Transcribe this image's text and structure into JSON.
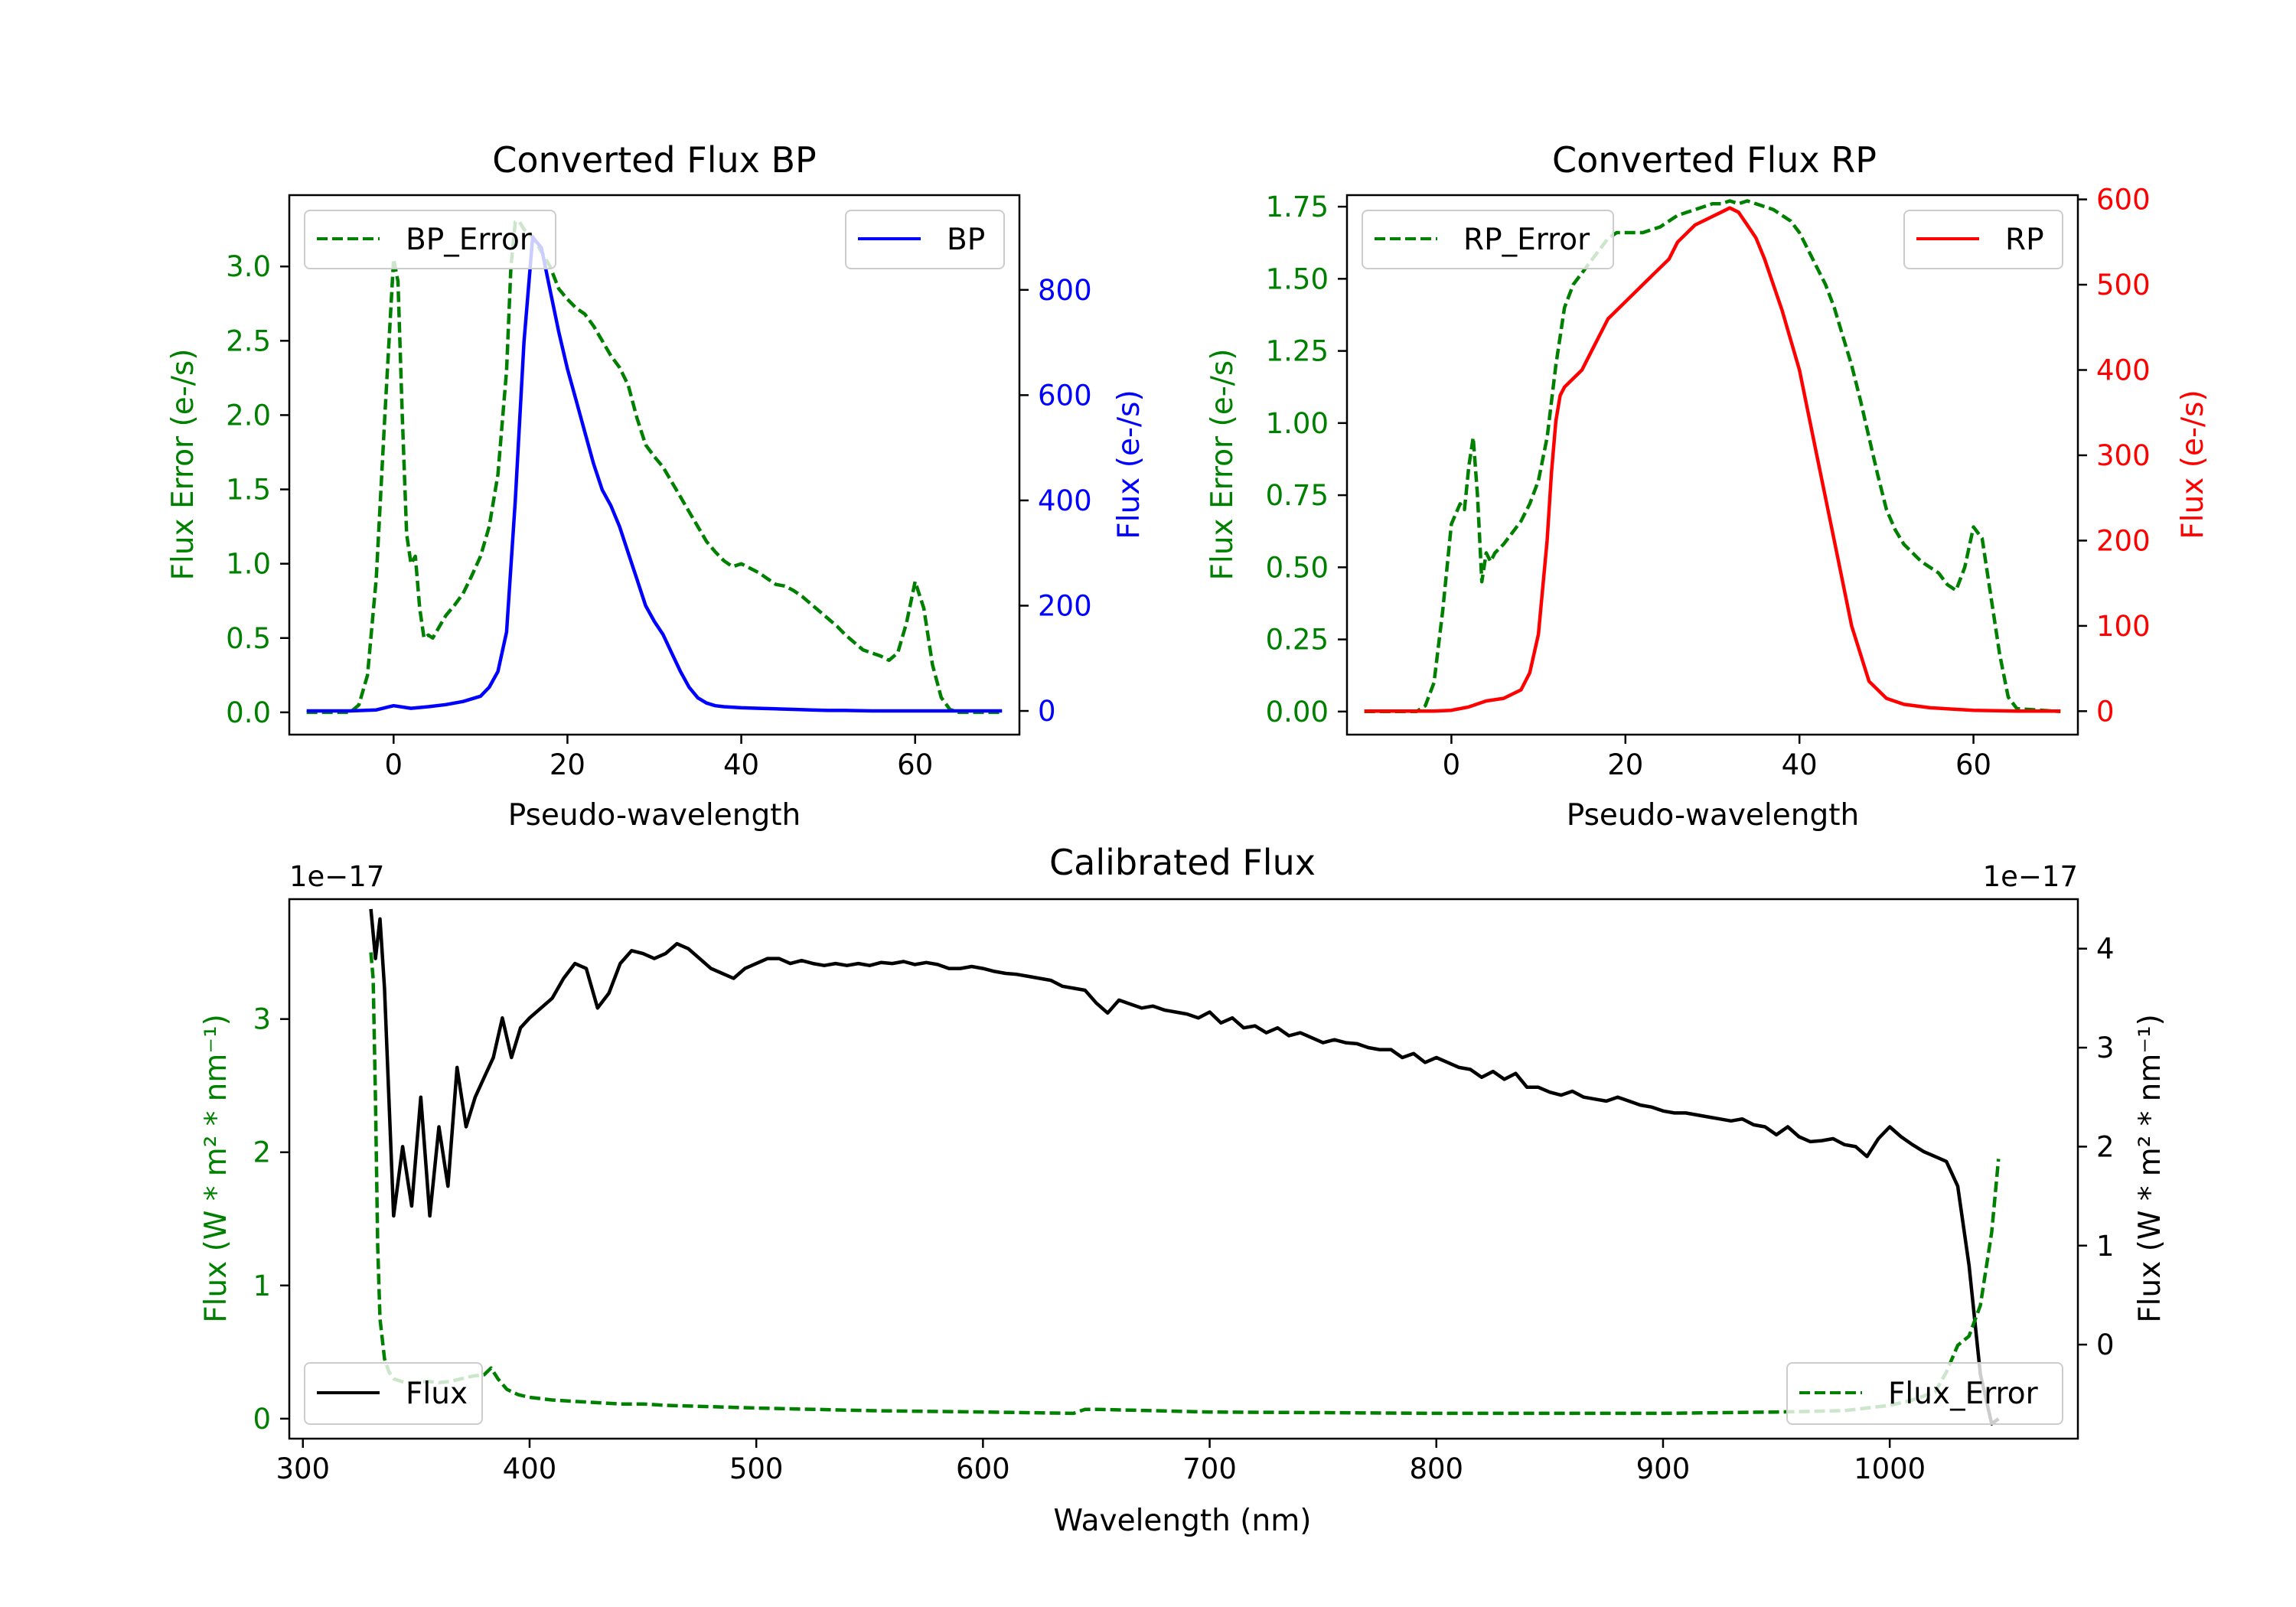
{
  "colors": {
    "bp": "#0000ff",
    "rp": "#ff0000",
    "error": "#008000",
    "flux": "#000000"
  },
  "chart_data": [
    {
      "type": "line",
      "title": "Converted Flux BP",
      "xlabel": "Pseudo-wavelength",
      "ylabel_left": "Flux Error (e-/s)",
      "ylabel_right": "Flux (e-/s)",
      "xlim": [
        -12,
        72
      ],
      "ylim_left": [
        -0.15,
        3.48
      ],
      "ylim_right": [
        -45,
        980
      ],
      "xticks": [
        "0",
        "20",
        "40",
        "60"
      ],
      "yticks_left": [
        "0.0",
        "0.5",
        "1.0",
        "1.5",
        "2.0",
        "2.5",
        "3.0"
      ],
      "yticks_right": [
        "0",
        "200",
        "400",
        "600",
        "800"
      ],
      "series": [
        {
          "name": "BP_Error",
          "axis": "left",
          "style": "dashed",
          "color": "#008000",
          "x": [
            -10,
            -5,
            -4,
            -3,
            -2,
            -1,
            0,
            0.5,
            1,
            1.5,
            2,
            2.5,
            3,
            3.5,
            4,
            4.5,
            5,
            6,
            7,
            8,
            9,
            10,
            11,
            12,
            13,
            13.5,
            14,
            14.5,
            15,
            16,
            17,
            18,
            19,
            20,
            21,
            22,
            23,
            24,
            25,
            26,
            27,
            28,
            29,
            30,
            31,
            32,
            33,
            34,
            35,
            36,
            37,
            38,
            39,
            40,
            41,
            42,
            43,
            44,
            45,
            46,
            47,
            48,
            49,
            50,
            51,
            52,
            53,
            54,
            55,
            56,
            57,
            58,
            59,
            60,
            61,
            62,
            63,
            64,
            65,
            70
          ],
          "y": [
            0,
            0,
            0.05,
            0.25,
            0.9,
            2.0,
            3.05,
            2.9,
            2.0,
            1.2,
            1.0,
            1.05,
            0.7,
            0.5,
            0.52,
            0.5,
            0.55,
            0.65,
            0.72,
            0.8,
            0.92,
            1.05,
            1.25,
            1.6,
            2.3,
            3.0,
            3.3,
            3.3,
            3.25,
            3.2,
            3.1,
            3.0,
            2.85,
            2.78,
            2.72,
            2.68,
            2.6,
            2.5,
            2.4,
            2.32,
            2.2,
            1.98,
            1.8,
            1.72,
            1.65,
            1.55,
            1.45,
            1.35,
            1.25,
            1.15,
            1.08,
            1.02,
            0.98,
            1.0,
            0.97,
            0.94,
            0.9,
            0.86,
            0.85,
            0.82,
            0.78,
            0.73,
            0.68,
            0.63,
            0.58,
            0.52,
            0.47,
            0.42,
            0.4,
            0.38,
            0.35,
            0.4,
            0.6,
            0.88,
            0.7,
            0.32,
            0.1,
            0.02,
            0,
            0
          ]
        },
        {
          "name": "BP",
          "axis": "right",
          "style": "solid",
          "color": "#0000ff",
          "x": [
            -10,
            -5,
            -2,
            0,
            2,
            4,
            6,
            8,
            10,
            11,
            12,
            13,
            14,
            15,
            16,
            17,
            18,
            19,
            20,
            21,
            22,
            23,
            24,
            25,
            26,
            27,
            28,
            29,
            30,
            31,
            32,
            33,
            34,
            35,
            36,
            37,
            38,
            40,
            42,
            44,
            46,
            48,
            50,
            52,
            55,
            60,
            65,
            70
          ],
          "y": [
            0,
            0,
            2,
            10,
            5,
            8,
            12,
            18,
            28,
            45,
            75,
            150,
            400,
            700,
            900,
            880,
            800,
            720,
            650,
            590,
            530,
            470,
            420,
            390,
            350,
            300,
            250,
            200,
            170,
            145,
            110,
            75,
            45,
            25,
            15,
            10,
            8,
            6,
            5,
            4,
            3,
            2,
            1,
            1,
            0,
            0,
            0,
            0
          ]
        }
      ],
      "legend": [
        "BP_Error",
        "BP"
      ]
    },
    {
      "type": "line",
      "title": "Converted Flux RP",
      "xlabel": "Pseudo-wavelength",
      "ylabel_left": "Flux Error (e-/s)",
      "ylabel_right": "Flux (e-/s)",
      "xlim": [
        -12,
        72
      ],
      "ylim_left": [
        -0.08,
        1.79
      ],
      "ylim_right": [
        -27.5,
        605
      ],
      "xticks": [
        "0",
        "20",
        "40",
        "60"
      ],
      "yticks_left": [
        "0.00",
        "0.25",
        "0.50",
        "0.75",
        "1.00",
        "1.25",
        "1.50",
        "1.75"
      ],
      "yticks_right": [
        "0",
        "100",
        "200",
        "300",
        "400",
        "500",
        "600"
      ],
      "series": [
        {
          "name": "RP_Error",
          "axis": "left",
          "style": "dashed",
          "color": "#008000",
          "x": [
            -10,
            -4,
            -3,
            -2,
            -1,
            0,
            1,
            1.5,
            2,
            2.5,
            3,
            3.5,
            4,
            4.5,
            5,
            6,
            7,
            8,
            9,
            10,
            11,
            12,
            13,
            14,
            15,
            16,
            17,
            18,
            19,
            20,
            21,
            22,
            23,
            24,
            25,
            26,
            27,
            28,
            29,
            30,
            31,
            32,
            33,
            34,
            35,
            36,
            37,
            38,
            39,
            40,
            41,
            42,
            43,
            44,
            45,
            46,
            47,
            48,
            49,
            50,
            51,
            52,
            53,
            54,
            55,
            56,
            57,
            58,
            59,
            60,
            61,
            62,
            63,
            64,
            65,
            70
          ],
          "y": [
            0,
            0,
            0.02,
            0.1,
            0.35,
            0.65,
            0.72,
            0.7,
            0.85,
            0.95,
            0.75,
            0.45,
            0.55,
            0.52,
            0.55,
            0.58,
            0.62,
            0.66,
            0.72,
            0.8,
            0.95,
            1.2,
            1.4,
            1.48,
            1.52,
            1.56,
            1.6,
            1.64,
            1.66,
            1.66,
            1.66,
            1.66,
            1.67,
            1.68,
            1.7,
            1.72,
            1.73,
            1.74,
            1.75,
            1.76,
            1.76,
            1.77,
            1.76,
            1.77,
            1.76,
            1.75,
            1.74,
            1.72,
            1.7,
            1.66,
            1.6,
            1.54,
            1.48,
            1.4,
            1.3,
            1.2,
            1.08,
            0.95,
            0.82,
            0.7,
            0.63,
            0.58,
            0.55,
            0.52,
            0.5,
            0.48,
            0.44,
            0.42,
            0.5,
            0.64,
            0.6,
            0.4,
            0.2,
            0.05,
            0.01,
            0
          ]
        },
        {
          "name": "RP",
          "axis": "right",
          "style": "solid",
          "color": "#ff0000",
          "x": [
            -10,
            -4,
            -2,
            0,
            2,
            4,
            6,
            8,
            9,
            10,
            11,
            11.5,
            12,
            12.5,
            13,
            14,
            15,
            16,
            17,
            18,
            20,
            22,
            24,
            25,
            26,
            28,
            30,
            31,
            32,
            33,
            34,
            35,
            36,
            38,
            40,
            42,
            44,
            46,
            48,
            50,
            52,
            55,
            60,
            65,
            70
          ],
          "y": [
            0,
            0,
            0,
            1,
            5,
            12,
            15,
            25,
            45,
            90,
            200,
            280,
            340,
            370,
            380,
            390,
            400,
            420,
            440,
            460,
            480,
            500,
            520,
            530,
            550,
            570,
            580,
            585,
            590,
            585,
            570,
            555,
            530,
            470,
            400,
            300,
            200,
            100,
            35,
            15,
            8,
            4,
            1,
            0,
            0
          ]
        }
      ],
      "legend": [
        "RP_Error",
        "RP"
      ]
    },
    {
      "type": "line",
      "title": "Calibrated Flux",
      "xlabel": "Wavelength (nm)",
      "ylabel_left": "Flux (W * m² * nm⁻¹)",
      "ylabel_right": "Flux (W * m² * nm⁻¹)",
      "offset_left": "1e−17",
      "offset_right": "1e−17",
      "xlim": [
        294,
        1083
      ],
      "ylim_left": [
        -0.15,
        3.9
      ],
      "ylim_right": [
        -0.95,
        4.5
      ],
      "xticks": [
        "300",
        "400",
        "500",
        "600",
        "700",
        "800",
        "900",
        "1000"
      ],
      "yticks_left": [
        "0",
        "1",
        "2",
        "3"
      ],
      "yticks_right": [
        "0",
        "1",
        "2",
        "3",
        "4"
      ],
      "series": [
        {
          "name": "Flux",
          "axis": "right",
          "style": "solid",
          "color": "#000000",
          "x": [
            330,
            332,
            334,
            336,
            340,
            344,
            348,
            352,
            356,
            360,
            364,
            368,
            372,
            376,
            380,
            384,
            388,
            392,
            396,
            400,
            405,
            410,
            415,
            420,
            425,
            430,
            435,
            440,
            445,
            450,
            455,
            460,
            465,
            470,
            475,
            480,
            485,
            490,
            495,
            500,
            505,
            510,
            515,
            520,
            525,
            530,
            535,
            540,
            545,
            550,
            555,
            560,
            565,
            570,
            575,
            580,
            585,
            590,
            595,
            600,
            605,
            610,
            615,
            620,
            625,
            630,
            635,
            640,
            645,
            650,
            655,
            660,
            665,
            670,
            675,
            680,
            685,
            690,
            695,
            700,
            705,
            710,
            715,
            720,
            725,
            730,
            735,
            740,
            745,
            750,
            755,
            760,
            765,
            770,
            775,
            780,
            785,
            790,
            795,
            800,
            805,
            810,
            815,
            820,
            825,
            830,
            835,
            840,
            845,
            850,
            855,
            860,
            865,
            870,
            875,
            880,
            885,
            890,
            895,
            900,
            905,
            910,
            915,
            920,
            925,
            930,
            935,
            940,
            945,
            950,
            955,
            960,
            965,
            970,
            975,
            980,
            985,
            990,
            995,
            1000,
            1005,
            1010,
            1015,
            1020,
            1025,
            1030,
            1035,
            1040,
            1045,
            1048
          ],
          "y": [
            4.4,
            3.9,
            4.3,
            3.6,
            1.3,
            2.0,
            1.4,
            2.5,
            1.3,
            2.2,
            1.6,
            2.8,
            2.2,
            2.5,
            2.7,
            2.9,
            3.3,
            2.9,
            3.2,
            3.3,
            3.4,
            3.5,
            3.7,
            3.85,
            3.8,
            3.4,
            3.55,
            3.85,
            3.98,
            3.95,
            3.9,
            3.95,
            4.05,
            4.0,
            3.9,
            3.8,
            3.75,
            3.7,
            3.8,
            3.85,
            3.9,
            3.9,
            3.85,
            3.88,
            3.85,
            3.83,
            3.85,
            3.83,
            3.85,
            3.83,
            3.86,
            3.85,
            3.87,
            3.84,
            3.86,
            3.84,
            3.8,
            3.8,
            3.82,
            3.8,
            3.77,
            3.75,
            3.74,
            3.72,
            3.7,
            3.68,
            3.62,
            3.6,
            3.58,
            3.45,
            3.35,
            3.48,
            3.44,
            3.4,
            3.42,
            3.38,
            3.36,
            3.34,
            3.3,
            3.36,
            3.25,
            3.3,
            3.2,
            3.22,
            3.15,
            3.2,
            3.12,
            3.15,
            3.1,
            3.05,
            3.08,
            3.05,
            3.04,
            3.0,
            2.98,
            2.98,
            2.9,
            2.94,
            2.85,
            2.9,
            2.85,
            2.8,
            2.78,
            2.7,
            2.76,
            2.68,
            2.74,
            2.6,
            2.6,
            2.55,
            2.52,
            2.56,
            2.5,
            2.48,
            2.46,
            2.5,
            2.46,
            2.42,
            2.4,
            2.36,
            2.34,
            2.34,
            2.32,
            2.3,
            2.28,
            2.26,
            2.28,
            2.22,
            2.2,
            2.12,
            2.2,
            2.1,
            2.05,
            2.06,
            2.08,
            2.02,
            2.0,
            1.9,
            2.08,
            2.2,
            2.1,
            2.02,
            1.95,
            1.9,
            1.85,
            1.6,
            0.8,
            -0.3,
            -0.8,
            -0.75
          ]
        },
        {
          "name": "Flux_Error",
          "axis": "left",
          "style": "dashed",
          "color": "#008000",
          "x": [
            330,
            331,
            332,
            333,
            334,
            336,
            338,
            340,
            345,
            350,
            355,
            360,
            365,
            370,
            375,
            380,
            383,
            386,
            390,
            395,
            400,
            410,
            420,
            430,
            440,
            450,
            460,
            480,
            500,
            550,
            600,
            640,
            645,
            650,
            700,
            800,
            900,
            950,
            980,
            1000,
            1010,
            1020,
            1025,
            1030,
            1035,
            1040,
            1045,
            1048
          ],
          "y": [
            3.5,
            3.3,
            2.4,
            1.3,
            0.75,
            0.45,
            0.35,
            0.3,
            0.27,
            0.27,
            0.28,
            0.27,
            0.28,
            0.3,
            0.32,
            0.33,
            0.38,
            0.3,
            0.22,
            0.18,
            0.16,
            0.14,
            0.13,
            0.12,
            0.11,
            0.11,
            0.1,
            0.09,
            0.08,
            0.06,
            0.05,
            0.04,
            0.07,
            0.07,
            0.05,
            0.04,
            0.04,
            0.05,
            0.06,
            0.1,
            0.14,
            0.2,
            0.35,
            0.55,
            0.62,
            0.85,
            1.4,
            1.95
          ]
        }
      ],
      "legend": [
        "Flux",
        "Flux_Error"
      ]
    }
  ]
}
